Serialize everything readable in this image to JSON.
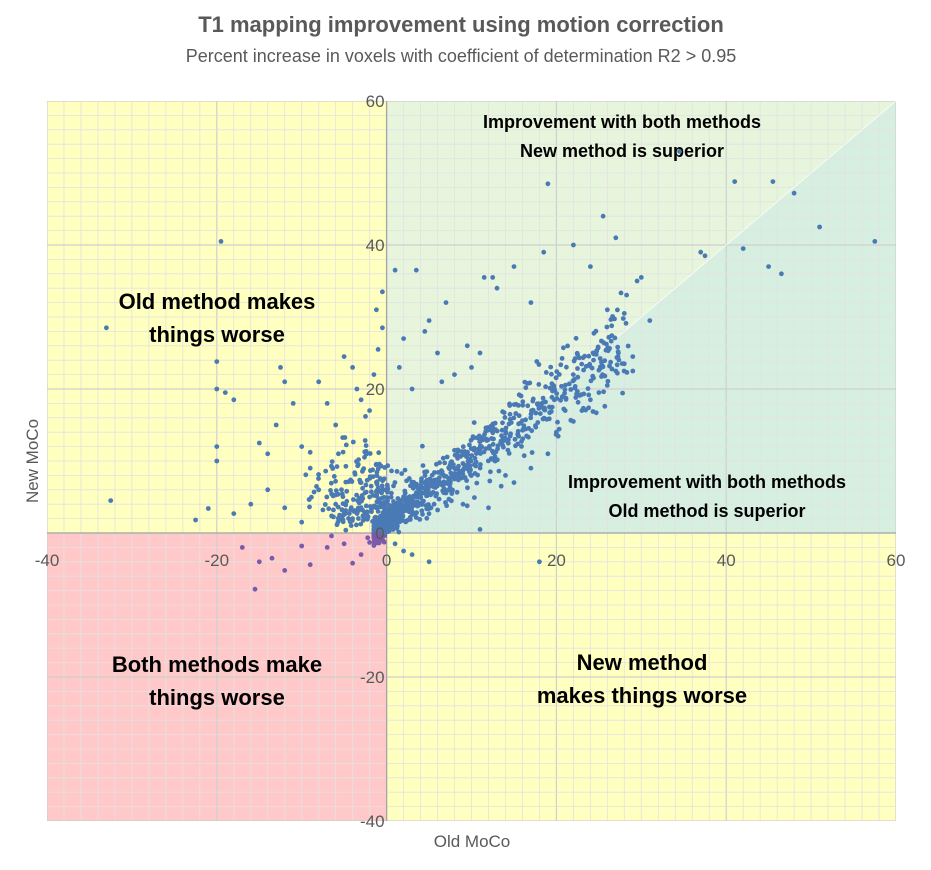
{
  "chart_data": {
    "type": "scatter",
    "title": "T1 mapping improvement using motion correction",
    "subtitle": "Percent increase in voxels with coefficient of determination R2 > 0.95",
    "xlabel": "Old MoCo",
    "ylabel": "New MoCo",
    "xlim": [
      -40,
      60
    ],
    "ylim": [
      -40,
      60
    ],
    "major_step": 20,
    "minor_step": 2,
    "grid": true,
    "x_ticks": [
      "-40",
      "-20",
      "0",
      "20",
      "40",
      "60"
    ],
    "y_ticks": [
      "-40",
      "-20",
      "0",
      "20",
      "40",
      "60"
    ],
    "regions": [
      {
        "label_lines": [
          "Old method makes",
          "things worse"
        ],
        "color": "#FFFFBF"
      },
      {
        "label_lines": [
          "Improvement with both methods",
          "New method is superior"
        ],
        "color": "#E8F5DD"
      },
      {
        "label_lines": [
          "Improvement with both methods",
          "Old method is superior"
        ],
        "color": "#D6EFE1"
      },
      {
        "label_lines": [
          "Both methods make",
          "things worse"
        ],
        "color": "#FFC9C9"
      },
      {
        "label_lines": [
          "New method",
          "makes things worse"
        ],
        "color": "#FFFFBF"
      }
    ],
    "point_color": "#4A7AB5",
    "point_color_negative": "#7A5AAA",
    "series": [
      {
        "name": "voxels",
        "points": [
          [
            -19.5,
            40.5
          ],
          [
            -33,
            28.5
          ],
          [
            -32.5,
            4.5
          ],
          [
            -20,
            23.8
          ],
          [
            -20,
            20
          ],
          [
            -19,
            19.5
          ],
          [
            -18,
            18.5
          ],
          [
            -20,
            12
          ],
          [
            -20,
            10
          ],
          [
            -21,
            3.4
          ],
          [
            -22.5,
            1.8
          ],
          [
            -18,
            2.7
          ],
          [
            -15,
            12.5
          ],
          [
            -14,
            11
          ],
          [
            -13,
            15
          ],
          [
            -12,
            21
          ],
          [
            -12.5,
            23
          ],
          [
            -11,
            18
          ],
          [
            -10,
            12
          ],
          [
            -9,
            9
          ],
          [
            -8,
            21
          ],
          [
            -7,
            18
          ],
          [
            -6,
            15
          ],
          [
            -5,
            24.5
          ],
          [
            -4,
            23
          ],
          [
            -3.5,
            20
          ],
          [
            -3,
            18.5
          ],
          [
            -2,
            17
          ],
          [
            -1.5,
            22
          ],
          [
            -1,
            25.5
          ],
          [
            -1.2,
            31
          ],
          [
            -0.5,
            28.5
          ],
          [
            -8,
            6
          ],
          [
            -6,
            4
          ],
          [
            -4,
            2
          ],
          [
            -3,
            7
          ],
          [
            -2,
            5
          ],
          [
            -1,
            3
          ],
          [
            -10,
            1.5
          ],
          [
            -12,
            3.5
          ],
          [
            -14,
            6
          ],
          [
            -16,
            4
          ],
          [
            -15,
            -4
          ],
          [
            -13.5,
            -3.5
          ],
          [
            -12,
            -5.2
          ],
          [
            -10,
            -1.8
          ],
          [
            -9,
            -4.4
          ],
          [
            -7,
            -2
          ],
          [
            -5,
            -1.5
          ],
          [
            -4,
            -4.2
          ],
          [
            -3,
            -3
          ],
          [
            -2,
            -1.3
          ],
          [
            -1,
            -1
          ],
          [
            -15.5,
            -7.8
          ],
          [
            -17,
            -2
          ],
          [
            -0.5,
            33.5
          ],
          [
            1,
            36.5
          ],
          [
            3.5,
            36.5
          ],
          [
            2,
            27
          ],
          [
            1.5,
            23
          ],
          [
            3,
            20
          ],
          [
            4.5,
            28
          ],
          [
            5,
            29.5
          ],
          [
            6,
            25
          ],
          [
            7,
            32
          ],
          [
            6.5,
            21
          ],
          [
            8,
            22
          ],
          [
            9.5,
            26
          ],
          [
            10,
            23
          ],
          [
            11,
            25
          ],
          [
            11.5,
            35.5
          ],
          [
            12.5,
            35.5
          ],
          [
            13,
            34
          ],
          [
            15,
            37
          ],
          [
            17,
            32
          ],
          [
            18.5,
            39
          ],
          [
            19,
            48.5
          ],
          [
            22,
            40
          ],
          [
            24,
            37
          ],
          [
            25.5,
            44
          ],
          [
            27,
            41
          ],
          [
            26,
            31
          ],
          [
            28,
            30.5
          ],
          [
            29.5,
            35
          ],
          [
            30,
            35.5
          ],
          [
            31,
            29.5
          ],
          [
            34.5,
            53
          ],
          [
            37,
            39
          ],
          [
            37.5,
            38.5
          ],
          [
            41,
            48.8
          ],
          [
            42,
            39.5
          ],
          [
            45,
            37
          ],
          [
            45.5,
            48.8
          ],
          [
            46.5,
            36
          ],
          [
            48,
            47.2
          ],
          [
            51,
            42.5
          ],
          [
            57.5,
            40.5
          ],
          [
            12,
            3.5
          ],
          [
            18,
            -4
          ],
          [
            11,
            0.5
          ],
          [
            13.5,
            6.5
          ],
          [
            15,
            7
          ],
          [
            17,
            9
          ],
          [
            19,
            11
          ],
          [
            20,
            14
          ],
          [
            22,
            15.5
          ],
          [
            23,
            17
          ],
          [
            24,
            18.5
          ],
          [
            25,
            19.5
          ],
          [
            26,
            20.5
          ],
          [
            27,
            22.5
          ],
          [
            28,
            23.5
          ],
          [
            29,
            24.5
          ],
          [
            29,
            22.5
          ],
          [
            9,
            4
          ],
          [
            14,
            8
          ],
          [
            2,
            -2.5
          ],
          [
            3,
            -3
          ],
          [
            5,
            -4
          ],
          [
            1,
            -1.5
          ]
        ]
      }
    ],
    "trend_fraction": 0.82
  }
}
